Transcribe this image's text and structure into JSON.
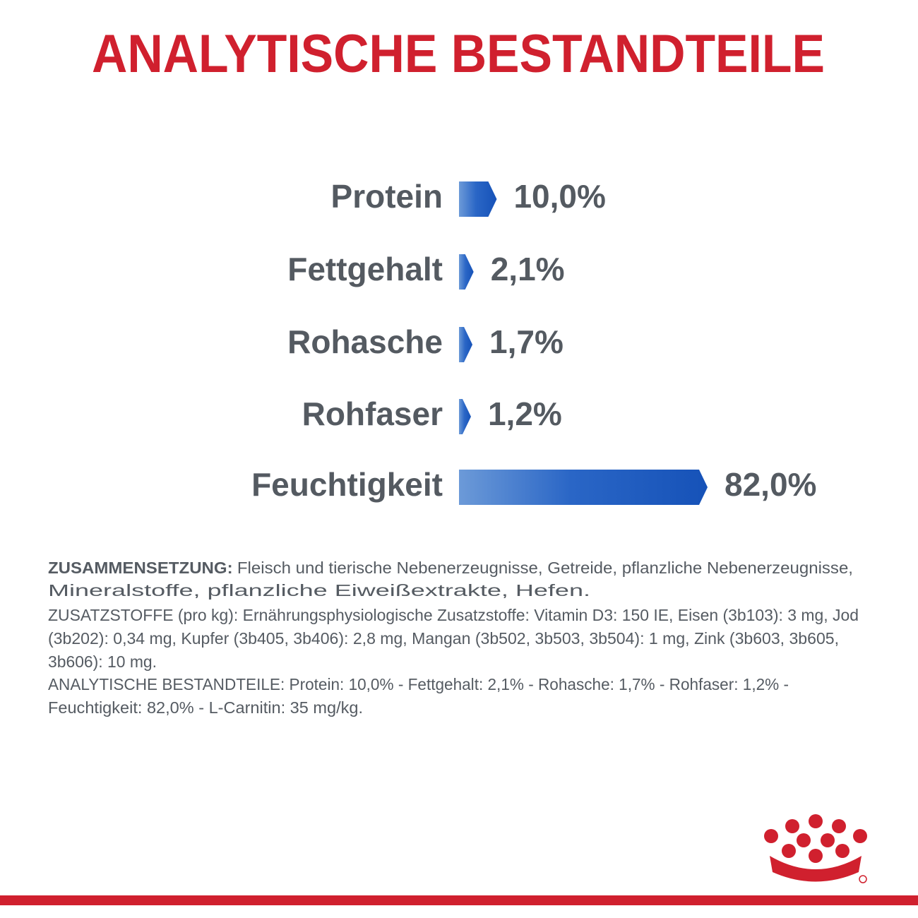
{
  "chart_data": {
    "type": "arrow-bar",
    "title": "ANALYTISCHE BESTANDTEILE",
    "categories": [
      "Protein",
      "Fettgehalt",
      "Rohasche",
      "Rohfaser",
      "Feuchtigkeit"
    ],
    "values": [
      10.0,
      2.1,
      1.7,
      1.2,
      82.0
    ],
    "value_labels": [
      "10,0%",
      "2,1%",
      "1,7%",
      "1,2%",
      "82,0%"
    ],
    "color": "#1f5cbf"
  },
  "composition": {
    "heading": "ZUSAMMENSETZUNG:",
    "lines": [
      "Fleisch und tierische Nebenerzeugnisse, Getreide, pflanzliche Nebenerzeugnisse,",
      "Mineralstoffe, pflanzliche Eiweißextrakte, Hefen.",
      "ZUSATZSTOFFE (pro kg): Ernährungsphysiologische Zusatzstoffe: Vitamin D3: 150 IE, Eisen (3b103): 3 mg, Jod",
      "(3b202): 0,34 mg, Kupfer (3b405, 3b406): 2,8 mg, Mangan (3b502, 3b503, 3b504): 1 mg, Zink (3b603, 3b605,",
      "3b606): 10 mg.",
      "ANALYTISCHE BESTANDTEILE: Protein: 10,0% - Fettgehalt: 2,1% - Rohasche: 1,7% - Rohfaser: 1,2% -",
      "Feuchtigkeit: 82,0% - L-Carnitin: 35 mg/kg."
    ]
  }
}
